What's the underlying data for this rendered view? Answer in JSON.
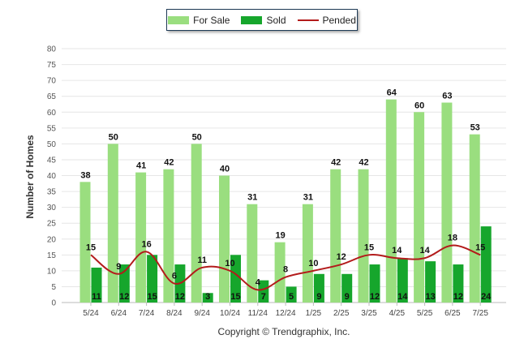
{
  "chart_data": {
    "type": "bar",
    "categories": [
      "5/24",
      "6/24",
      "7/24",
      "8/24",
      "9/24",
      "10/24",
      "11/24",
      "12/24",
      "1/25",
      "2/25",
      "3/25",
      "4/25",
      "5/25",
      "6/25",
      "7/25"
    ],
    "series": [
      {
        "name": "For Sale",
        "type": "bar",
        "color": "#9ade7f",
        "values": [
          38,
          50,
          41,
          42,
          50,
          40,
          31,
          19,
          31,
          42,
          42,
          64,
          60,
          63,
          53
        ]
      },
      {
        "name": "Sold",
        "type": "bar",
        "color": "#16a62c",
        "values": [
          11,
          12,
          15,
          12,
          3,
          15,
          7,
          5,
          9,
          9,
          12,
          14,
          13,
          12,
          24
        ]
      },
      {
        "name": "Pended",
        "type": "line",
        "color": "#b31b1b",
        "values": [
          15,
          9,
          16,
          6,
          11,
          10,
          4,
          8,
          10,
          12,
          15,
          14,
          14,
          18,
          15
        ]
      }
    ],
    "ylabel": "Number of Homes",
    "xlabel": "",
    "ylim": [
      0,
      80
    ],
    "yticks": [
      0,
      5,
      10,
      15,
      20,
      25,
      30,
      35,
      40,
      45,
      50,
      55,
      60,
      65,
      70,
      75,
      80
    ],
    "grid": true,
    "legend_position": "top-center"
  },
  "footer": {
    "copyright": "Copyright © Trendgraphix, Inc."
  }
}
